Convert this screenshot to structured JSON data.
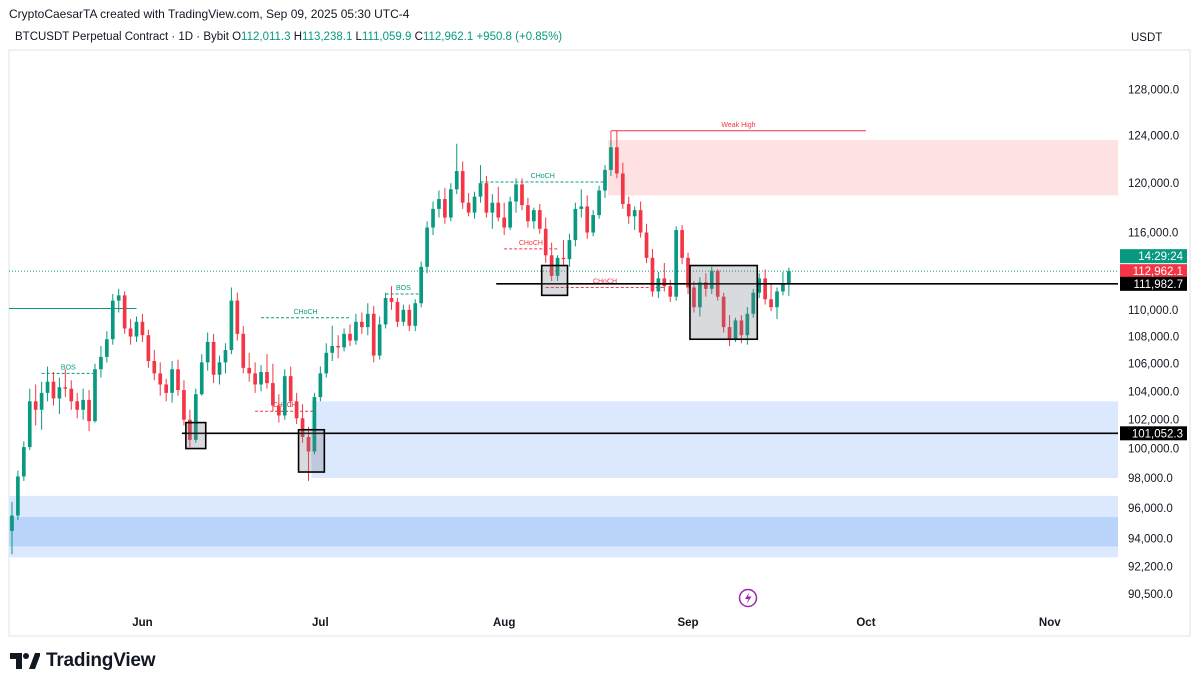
{
  "header": {
    "credit": "CryptoCaesarTA created with TradingView.com, Sep 09, 2025 05:30 UTC-4",
    "symbol": "BTCUSDT Perpetual Contract · 1D · Bybit",
    "open_label": "O",
    "open": "112,011.3",
    "high_label": "H",
    "high": "113,238.1",
    "low_label": "L",
    "low": "111,059.9",
    "close_label": "C",
    "close": "112,962.1",
    "change": "+950.8 (+0.85%)",
    "currency": "USDT"
  },
  "footer": {
    "brand": "TradingView",
    "logo_icon": "tradingview-logo-icon"
  },
  "colors": {
    "up": "#089981",
    "down": "#f23645",
    "supply_zone": "#fde1e3",
    "demand_zone_light": "#dbe8fd",
    "demand_zone_dark": "#b9d3fb",
    "price_tag": "#f23645",
    "time_tag": "#089981",
    "level_tag": "#000000"
  },
  "chart_data": {
    "type": "candlestick",
    "y_scale": "log",
    "ylim": [
      89500,
      131500
    ],
    "y_ticks": [
      "128,000.0",
      "124,000.0",
      "120,000.0",
      "116,000.0",
      "110,000.0",
      "108,000.0",
      "106,000.0",
      "104,000.0",
      "102,000.0",
      "100,000.0",
      "98,000.0",
      "96,000.0",
      "94,000.0",
      "92,200.0",
      "90,500.0"
    ],
    "x_ticks": [
      {
        "label": "Jun",
        "date": "2025-06-01"
      },
      {
        "label": "Jul",
        "date": "2025-07-01"
      },
      {
        "label": "Aug",
        "date": "2025-08-01"
      },
      {
        "label": "Sep",
        "date": "2025-09-01"
      },
      {
        "label": "Oct",
        "date": "2025-10-01"
      },
      {
        "label": "Nov",
        "date": "2025-11-01"
      }
    ],
    "xlim": [
      "2025-05-10",
      "2025-11-13"
    ],
    "candles": [
      [
        "2025-05-10",
        94500,
        96400,
        93000,
        95500
      ],
      [
        "2025-05-11",
        95500,
        98500,
        95200,
        98100
      ],
      [
        "2025-05-12",
        98100,
        100500,
        97800,
        100100
      ],
      [
        "2025-05-13",
        100100,
        104200,
        99900,
        103300
      ],
      [
        "2025-05-14",
        103300,
        104500,
        101600,
        102700
      ],
      [
        "2025-05-15",
        102700,
        104700,
        101300,
        103900
      ],
      [
        "2025-05-16",
        103900,
        105800,
        103300,
        104700
      ],
      [
        "2025-05-17",
        104700,
        105400,
        103000,
        103500
      ],
      [
        "2025-05-18",
        103500,
        105000,
        102400,
        104300
      ],
      [
        "2025-05-19",
        104300,
        105600,
        103600,
        104200
      ],
      [
        "2025-05-20",
        104200,
        104800,
        102700,
        103300
      ],
      [
        "2025-05-21",
        103300,
        103900,
        102100,
        102700
      ],
      [
        "2025-05-22",
        102700,
        104200,
        102000,
        103400
      ],
      [
        "2025-05-23",
        103400,
        104100,
        101200,
        101900
      ],
      [
        "2025-05-24",
        101900,
        106000,
        101800,
        105600
      ],
      [
        "2025-05-25",
        105600,
        107300,
        105000,
        106500
      ],
      [
        "2025-05-26",
        106500,
        108400,
        106100,
        107800
      ],
      [
        "2025-05-27",
        107800,
        111200,
        107400,
        110700
      ],
      [
        "2025-05-28",
        110700,
        111600,
        109800,
        111100
      ],
      [
        "2025-05-29",
        111100,
        111400,
        108200,
        108600
      ],
      [
        "2025-05-30",
        108600,
        109300,
        107400,
        108000
      ],
      [
        "2025-05-31",
        108000,
        109500,
        107600,
        109100
      ],
      [
        "2025-06-01",
        109100,
        109700,
        107600,
        108100
      ],
      [
        "2025-06-02",
        108100,
        108500,
        105700,
        106200
      ],
      [
        "2025-06-03",
        106200,
        107000,
        104800,
        105300
      ],
      [
        "2025-06-04",
        105300,
        106100,
        103700,
        104500
      ],
      [
        "2025-06-05",
        104500,
        104900,
        103300,
        103900
      ],
      [
        "2025-06-06",
        103900,
        106200,
        103200,
        105600
      ],
      [
        "2025-06-07",
        105600,
        106300,
        103700,
        104100
      ],
      [
        "2025-06-08",
        104100,
        104800,
        101600,
        102000
      ],
      [
        "2025-06-09",
        102000,
        102700,
        100100,
        100600
      ],
      [
        "2025-06-10",
        100600,
        104200,
        100400,
        103800
      ],
      [
        "2025-06-11",
        103800,
        106700,
        103700,
        106100
      ],
      [
        "2025-06-12",
        106100,
        108300,
        105500,
        107600
      ],
      [
        "2025-06-13",
        107600,
        108200,
        104600,
        105200
      ],
      [
        "2025-06-14",
        105200,
        106600,
        104500,
        106100
      ],
      [
        "2025-06-15",
        106100,
        107500,
        105300,
        107000
      ],
      [
        "2025-06-16",
        107000,
        111700,
        106700,
        110700
      ],
      [
        "2025-06-17",
        110700,
        111300,
        107700,
        108200
      ],
      [
        "2025-06-18",
        108200,
        108800,
        105300,
        105700
      ],
      [
        "2025-06-19",
        105700,
        106800,
        104700,
        105300
      ],
      [
        "2025-06-20",
        105300,
        106100,
        103900,
        104500
      ],
      [
        "2025-06-21",
        104500,
        105900,
        104000,
        105400
      ],
      [
        "2025-06-22",
        105400,
        106700,
        104200,
        104600
      ],
      [
        "2025-06-23",
        104600,
        106000,
        102600,
        103000
      ],
      [
        "2025-06-24",
        103000,
        103800,
        101800,
        102300
      ],
      [
        "2025-06-25",
        102300,
        105600,
        102000,
        105100
      ],
      [
        "2025-06-26",
        105100,
        105800,
        102900,
        103300
      ],
      [
        "2025-06-27",
        103300,
        103900,
        101700,
        102100
      ],
      [
        "2025-06-28",
        102100,
        103100,
        100400,
        100800
      ],
      [
        "2025-06-29",
        100800,
        101500,
        97800,
        99800
      ],
      [
        "2025-06-30",
        99800,
        103900,
        99600,
        103600
      ],
      [
        "2025-07-01",
        103600,
        105800,
        103300,
        105300
      ],
      [
        "2025-07-02",
        105300,
        107500,
        105000,
        106800
      ],
      [
        "2025-07-03",
        106800,
        108800,
        106200,
        107300
      ],
      [
        "2025-07-04",
        107300,
        108100,
        106400,
        107200
      ],
      [
        "2025-07-05",
        107200,
        108600,
        106900,
        108200
      ],
      [
        "2025-07-06",
        108200,
        108900,
        107300,
        107700
      ],
      [
        "2025-07-07",
        107700,
        109700,
        107400,
        109100
      ],
      [
        "2025-07-08",
        109100,
        109800,
        108200,
        108700
      ],
      [
        "2025-07-09",
        108700,
        110500,
        108100,
        109700
      ],
      [
        "2025-07-10",
        109700,
        110300,
        106100,
        106600
      ],
      [
        "2025-07-11",
        106600,
        109500,
        106300,
        108900
      ],
      [
        "2025-07-12",
        108900,
        111300,
        108600,
        110900
      ],
      [
        "2025-07-13",
        110900,
        111800,
        110000,
        110600
      ],
      [
        "2025-07-14",
        110600,
        110900,
        108700,
        109100
      ],
      [
        "2025-07-15",
        109100,
        110400,
        108800,
        110000
      ],
      [
        "2025-07-16",
        110000,
        110400,
        108400,
        108800
      ],
      [
        "2025-07-17",
        108800,
        110800,
        108400,
        110500
      ],
      [
        "2025-07-18",
        110500,
        113700,
        110200,
        113300
      ],
      [
        "2025-07-19",
        113300,
        116900,
        112800,
        116400
      ],
      [
        "2025-07-20",
        116400,
        118500,
        115800,
        117900
      ],
      [
        "2025-07-21",
        117900,
        119400,
        117200,
        118700
      ],
      [
        "2025-07-22",
        118700,
        119600,
        116700,
        117200
      ],
      [
        "2025-07-23",
        117200,
        120000,
        116900,
        119500
      ],
      [
        "2025-07-24",
        119500,
        123300,
        119100,
        121000
      ],
      [
        "2025-07-25",
        121000,
        121800,
        117900,
        118400
      ],
      [
        "2025-07-26",
        118400,
        119200,
        117300,
        117600
      ],
      [
        "2025-07-27",
        117600,
        119300,
        117100,
        118900
      ],
      [
        "2025-07-28",
        118900,
        121500,
        118400,
        120000
      ],
      [
        "2025-07-29",
        120000,
        120600,
        117200,
        117600
      ],
      [
        "2025-07-30",
        117600,
        119100,
        116300,
        118400
      ],
      [
        "2025-07-31",
        118400,
        119700,
        116900,
        117200
      ],
      [
        "2025-08-01",
        117200,
        118400,
        115800,
        116400
      ],
      [
        "2025-08-02",
        116400,
        118900,
        116200,
        118500
      ],
      [
        "2025-08-03",
        118500,
        120400,
        117600,
        119900
      ],
      [
        "2025-08-04",
        119900,
        120400,
        117800,
        118200
      ],
      [
        "2025-08-05",
        118200,
        118800,
        116400,
        116900
      ],
      [
        "2025-08-06",
        116900,
        118000,
        116300,
        117800
      ],
      [
        "2025-08-07",
        117800,
        118300,
        115900,
        116300
      ],
      [
        "2025-08-08",
        116300,
        117200,
        113600,
        114200
      ],
      [
        "2025-08-09",
        114200,
        115200,
        112200,
        112600
      ],
      [
        "2025-08-10",
        112600,
        114200,
        112200,
        114000
      ],
      [
        "2025-08-11",
        114000,
        115400,
        113400,
        113900
      ],
      [
        "2025-08-12",
        113900,
        115900,
        113300,
        115400
      ],
      [
        "2025-08-13",
        115400,
        118400,
        114900,
        117900
      ],
      [
        "2025-08-14",
        117900,
        119500,
        117200,
        118100
      ],
      [
        "2025-08-15",
        118100,
        119000,
        115500,
        116000
      ],
      [
        "2025-08-16",
        116000,
        117800,
        115700,
        117400
      ],
      [
        "2025-08-17",
        117400,
        119800,
        117100,
        119400
      ],
      [
        "2025-08-18",
        119400,
        121500,
        118800,
        121100
      ],
      [
        "2025-08-19",
        121100,
        123500,
        120600,
        123000
      ],
      [
        "2025-08-20",
        123000,
        124400,
        120400,
        120800
      ],
      [
        "2025-08-21",
        120800,
        121700,
        117900,
        118300
      ],
      [
        "2025-08-22",
        118300,
        118900,
        116700,
        117300
      ],
      [
        "2025-08-23",
        117300,
        118100,
        116200,
        117800
      ],
      [
        "2025-08-24",
        117800,
        118500,
        115600,
        116000
      ],
      [
        "2025-08-25",
        116000,
        116700,
        113600,
        114000
      ],
      [
        "2025-08-26",
        114000,
        114700,
        111000,
        111400
      ],
      [
        "2025-08-27",
        111400,
        112900,
        110900,
        112400
      ],
      [
        "2025-08-28",
        112400,
        113600,
        111400,
        111800
      ],
      [
        "2025-08-29",
        111800,
        112300,
        110600,
        111000
      ],
      [
        "2025-08-30",
        111000,
        116500,
        110700,
        116200
      ],
      [
        "2025-08-31",
        116200,
        116600,
        113500,
        114000
      ],
      [
        "2025-09-01",
        114000,
        114400,
        111200,
        111700
      ],
      [
        "2025-09-02",
        111700,
        112200,
        109800,
        110200
      ],
      [
        "2025-09-03",
        110200,
        112500,
        109500,
        112100
      ],
      [
        "2025-09-04",
        112100,
        112800,
        111000,
        111600
      ],
      [
        "2025-09-05",
        111600,
        113300,
        111200,
        113000
      ],
      [
        "2025-09-06",
        113000,
        113100,
        110700,
        111000
      ],
      [
        "2025-09-07",
        111000,
        111300,
        108300,
        108700
      ],
      [
        "2025-09-08",
        108700,
        109600,
        107300,
        107800
      ],
      [
        "2025-09-09",
        107800,
        109400,
        107600,
        109200
      ],
      [
        "2025-09-10",
        109200,
        109600,
        107500,
        108100
      ],
      [
        "2025-09-11",
        108100,
        110200,
        107400,
        109700
      ],
      [
        "2025-09-12",
        109700,
        111600,
        109400,
        111300
      ],
      [
        "2025-09-13",
        111300,
        112800,
        110900,
        112400
      ],
      [
        "2025-09-14",
        112400,
        113100,
        110400,
        110800
      ],
      [
        "2025-09-15",
        110800,
        112000,
        109900,
        110200
      ],
      [
        "2025-09-16",
        110200,
        111700,
        109300,
        111400
      ],
      [
        "2025-09-17",
        111400,
        112900,
        111100,
        112000
      ],
      [
        "2025-09-18",
        112000,
        113238.1,
        111059.9,
        112962.1
      ]
    ],
    "zones": [
      {
        "name": "supply-zone",
        "kind": "supply",
        "from": "2025-08-19",
        "to": "2025-11-13",
        "top": 123600,
        "bottom": 119000
      },
      {
        "name": "demand-zone-mid",
        "kind": "demand-light",
        "from": "2025-06-30",
        "to": "2025-11-13",
        "top": 103300,
        "bottom": 98000
      },
      {
        "name": "demand-zone-low-outer",
        "kind": "demand-light",
        "from": "2025-05-10",
        "to": "2025-11-13",
        "top": 96800,
        "bottom": 92800
      },
      {
        "name": "demand-zone-low-inner",
        "kind": "demand-dark",
        "from": "2025-05-10",
        "to": "2025-11-13",
        "top": 95400,
        "bottom": 93500
      }
    ],
    "levels": [
      {
        "name": "level-111982",
        "value": 111982.7,
        "label": "111,982.7",
        "from": "2025-08-01"
      },
      {
        "name": "level-101052",
        "value": 101052.3,
        "label": "101,052.3",
        "from": "2025-06-09"
      }
    ],
    "highlight_boxes": [
      {
        "name": "box-jun-a",
        "from": "2025-06-09",
        "to": "2025-06-11",
        "top": 101800,
        "bottom": 100000
      },
      {
        "name": "box-jun-b",
        "from": "2025-06-28",
        "to": "2025-07-01",
        "top": 101300,
        "bottom": 98400
      },
      {
        "name": "box-aug-a",
        "from": "2025-08-08",
        "to": "2025-08-11",
        "top": 113400,
        "bottom": 111100
      },
      {
        "name": "box-late-aug",
        "from": "2025-09-02",
        "to": "2025-09-12",
        "top": 113400,
        "bottom": 107800
      }
    ],
    "structure_labels": [
      {
        "text": "BOS",
        "color": "up",
        "x_from": "2025-05-15",
        "x_to": "2025-05-24",
        "y": 105300
      },
      {
        "text": "BOS",
        "color": "up",
        "x_from": "2025-07-12",
        "x_to": "2025-07-18",
        "y": 111200
      },
      {
        "text": "CHoCH",
        "color": "up",
        "x_from": "2025-06-21",
        "x_to": "2025-07-06",
        "y": 109400
      },
      {
        "text": "CHoCH",
        "color": "up",
        "x_from": "2025-07-28",
        "x_to": "2025-08-18",
        "y": 120100
      },
      {
        "text": "CHoCH",
        "color": "down",
        "x_from": "2025-06-20",
        "x_to": "2025-06-30",
        "y": 102600
      },
      {
        "text": "CHoCH",
        "color": "down",
        "x_from": "2025-08-01",
        "x_to": "2025-08-10",
        "y": 114700
      },
      {
        "text": "CHoCH",
        "color": "down",
        "x_from": "2025-08-08",
        "x_to": "2025-08-28",
        "y": 111700
      },
      {
        "text": "Weak High",
        "color": "down",
        "x_from": "2025-08-19",
        "x_to": "2025-10-01",
        "y": 124400
      }
    ],
    "left_segment": {
      "from": "2025-05-10",
      "to": "2025-05-31",
      "value": 110100
    },
    "price_tags": {
      "time": "14:29:24",
      "last": "112,962.1",
      "last_value": 112962.1
    },
    "alert_icon": "lightning-icon"
  }
}
